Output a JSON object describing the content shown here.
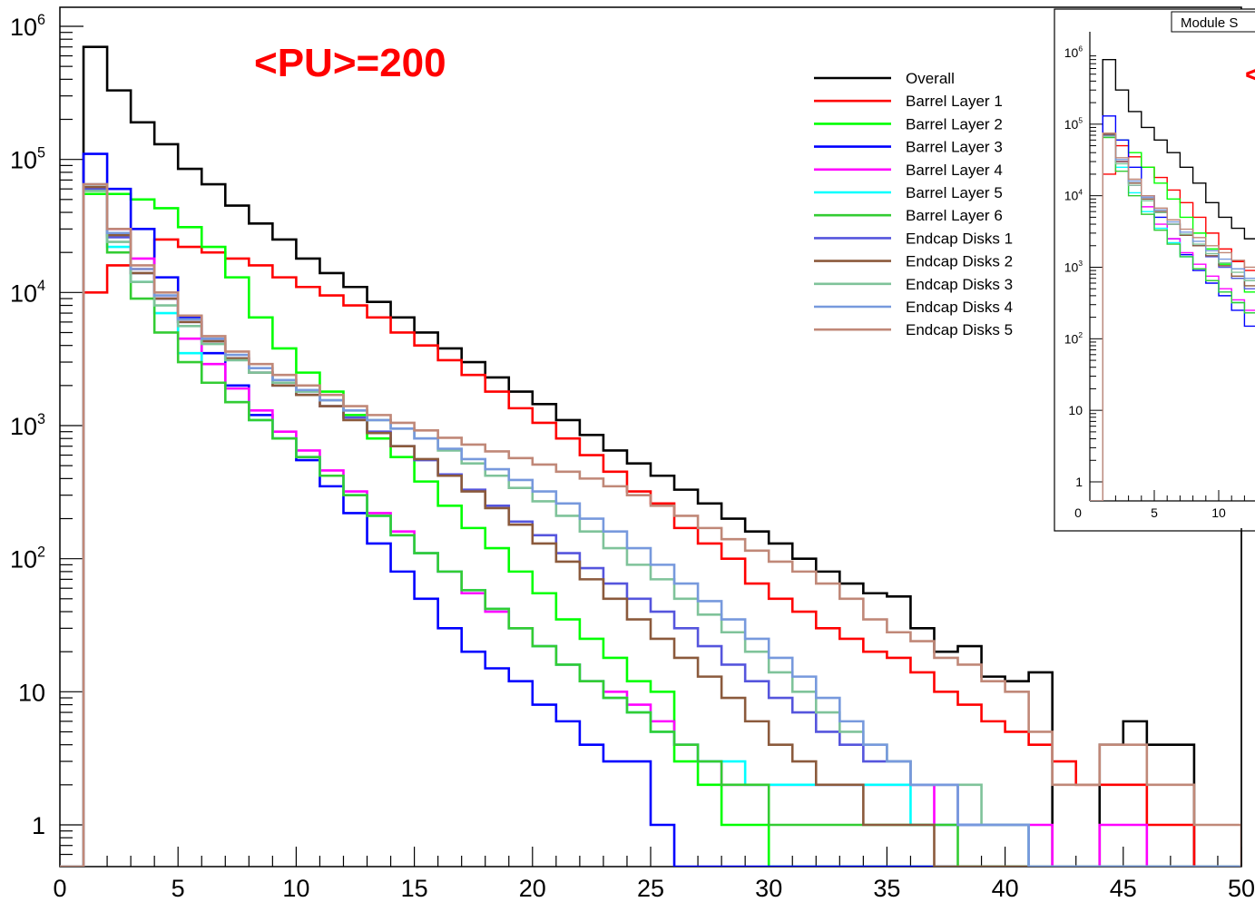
{
  "chart_data": [
    {
      "type": "line",
      "chart_kind": "step histogram",
      "annotation": "<PU>=200",
      "annotation_color": "#ff0000",
      "ylog": true,
      "xlim": [
        0,
        50
      ],
      "ylim": [
        0.5,
        1000000
      ],
      "x_ticks": [
        "0",
        "5",
        "10",
        "15",
        "20",
        "25",
        "30",
        "35",
        "40",
        "45",
        "50"
      ],
      "y_ticks": [
        "1",
        "10",
        "10^2",
        "10^3",
        "10^4",
        "10^5",
        "10^6"
      ],
      "bin_edges_start": 0,
      "bin_width": 1,
      "grid": false,
      "legend_position": "top-right",
      "series": [
        {
          "name": "Overall",
          "color": "#000000",
          "values": [
            0,
            700000,
            330000,
            190000,
            130000,
            85000,
            65000,
            45000,
            33000,
            25000,
            18000,
            14000,
            11000,
            8500,
            6500,
            5000,
            3800,
            3000,
            2300,
            1800,
            1450,
            1100,
            850,
            650,
            520,
            420,
            330,
            260,
            200,
            160,
            130,
            100,
            80,
            65,
            55,
            52,
            30,
            20,
            22,
            13,
            12,
            14,
            0,
            0,
            4,
            6,
            4,
            4,
            0,
            0
          ]
        },
        {
          "name": "Barrel Layer 1",
          "color": "#ff0000",
          "values": [
            0,
            10000,
            16000,
            15000,
            25000,
            22000,
            20000,
            18000,
            16000,
            13000,
            11000,
            9500,
            8000,
            6500,
            5000,
            4000,
            3100,
            2400,
            1800,
            1350,
            1050,
            800,
            600,
            450,
            320,
            260,
            170,
            130,
            100,
            65,
            50,
            40,
            30,
            25,
            20,
            18,
            14,
            10,
            8,
            6,
            5,
            4,
            3,
            2,
            2,
            2,
            1,
            1,
            0,
            0
          ]
        },
        {
          "name": "Barrel Layer 2",
          "color": "#00ff00",
          "values": [
            0,
            55000,
            55000,
            50000,
            43000,
            31000,
            22000,
            13000,
            6500,
            3800,
            2500,
            1800,
            1200,
            800,
            580,
            380,
            250,
            170,
            120,
            80,
            55,
            35,
            25,
            18,
            12,
            10,
            3,
            2,
            1,
            1,
            0,
            0,
            0,
            0,
            0,
            0,
            0,
            0,
            0,
            0,
            0,
            0,
            0,
            0,
            0,
            0,
            0,
            0,
            0,
            0
          ]
        },
        {
          "name": "Barrel Layer 3",
          "color": "#0000ff",
          "values": [
            0,
            110000,
            60000,
            30000,
            13000,
            6500,
            3500,
            2000,
            1200,
            800,
            550,
            350,
            220,
            130,
            80,
            50,
            30,
            20,
            15,
            12,
            8,
            6,
            4,
            3,
            3,
            1,
            0,
            0,
            0,
            0,
            0,
            0,
            0,
            0,
            0,
            0,
            0,
            0,
            0,
            0,
            0,
            0,
            0,
            0,
            0,
            0,
            0,
            0,
            0,
            0
          ]
        },
        {
          "name": "Barrel Layer 4",
          "color": "#ff00ff",
          "values": [
            0,
            60000,
            30000,
            18000,
            9000,
            4500,
            2900,
            1900,
            1300,
            900,
            650,
            460,
            320,
            220,
            160,
            110,
            80,
            55,
            40,
            30,
            22,
            16,
            12,
            10,
            8,
            6,
            4,
            3,
            2,
            2,
            2,
            2,
            2,
            2,
            2,
            2,
            2,
            1,
            1,
            1,
            1,
            1,
            0,
            0,
            1,
            1,
            0,
            0,
            0,
            0
          ]
        },
        {
          "name": "Barrel Layer 5",
          "color": "#00ffff",
          "values": [
            0,
            62000,
            22000,
            12000,
            7000,
            3500,
            2100,
            1500,
            1100,
            800,
            580,
            420,
            300,
            210,
            150,
            110,
            80,
            58,
            42,
            30,
            22,
            16,
            12,
            9,
            7,
            5,
            4,
            3,
            3,
            2,
            2,
            2,
            2,
            2,
            2,
            2,
            1,
            1,
            1,
            1,
            1,
            0,
            0,
            0,
            0,
            0,
            0,
            0,
            0,
            0
          ]
        },
        {
          "name": "Barrel Layer 6",
          "color": "#33cc33",
          "values": [
            0,
            58000,
            20000,
            9000,
            5000,
            3000,
            2100,
            1500,
            1100,
            800,
            580,
            420,
            300,
            210,
            150,
            110,
            80,
            58,
            42,
            30,
            22,
            16,
            12,
            9,
            7,
            5,
            4,
            3,
            2,
            2,
            1,
            1,
            1,
            1,
            1,
            1,
            1,
            1,
            0,
            0,
            0,
            0,
            0,
            0,
            0,
            0,
            0,
            0,
            0,
            0
          ]
        },
        {
          "name": "Endcap Disks 1",
          "color": "#5555dd",
          "values": [
            0,
            60000,
            26000,
            14000,
            9000,
            6000,
            4300,
            3200,
            2500,
            2000,
            1700,
            1400,
            1150,
            900,
            700,
            550,
            430,
            330,
            250,
            190,
            150,
            110,
            85,
            65,
            50,
            40,
            30,
            22,
            16,
            12,
            9,
            7,
            5,
            4,
            3,
            3,
            2,
            2,
            1,
            1,
            1,
            0,
            0,
            0,
            0,
            0,
            0,
            0,
            0,
            0
          ]
        },
        {
          "name": "Endcap Disks 2",
          "color": "#8b5a3c",
          "values": [
            0,
            62000,
            27000,
            14000,
            9000,
            6000,
            4300,
            3200,
            2500,
            2000,
            1700,
            1400,
            1100,
            880,
            700,
            560,
            420,
            320,
            240,
            180,
            130,
            95,
            70,
            50,
            35,
            25,
            18,
            13,
            9,
            6,
            4,
            3,
            2,
            2,
            1,
            1,
            1,
            0,
            0,
            0,
            0,
            0,
            0,
            0,
            0,
            0,
            0,
            0,
            0,
            0
          ]
        },
        {
          "name": "Endcap Disks 3",
          "color": "#7fc39a",
          "values": [
            0,
            58000,
            24000,
            12000,
            8000,
            5600,
            4100,
            3100,
            2500,
            2100,
            1800,
            1550,
            1300,
            1100,
            950,
            800,
            650,
            520,
            420,
            340,
            270,
            210,
            160,
            120,
            90,
            70,
            50,
            38,
            28,
            20,
            14,
            10,
            7,
            5,
            4,
            3,
            2,
            2,
            2,
            1,
            1,
            0,
            0,
            0,
            0,
            0,
            0,
            0,
            0,
            0
          ]
        },
        {
          "name": "Endcap Disks 4",
          "color": "#7799dd",
          "values": [
            0,
            65000,
            28000,
            15000,
            9500,
            6300,
            4500,
            3400,
            2700,
            2200,
            1850,
            1550,
            1300,
            1100,
            950,
            800,
            670,
            560,
            470,
            390,
            320,
            260,
            200,
            160,
            120,
            90,
            65,
            48,
            35,
            25,
            18,
            13,
            9,
            6,
            4,
            3,
            2,
            2,
            1,
            1,
            1,
            0,
            0,
            0,
            0,
            0,
            0,
            0,
            0,
            0
          ]
        },
        {
          "name": "Endcap Disks 5",
          "color": "#c08878",
          "values": [
            0,
            65000,
            30000,
            16000,
            10000,
            6700,
            4700,
            3600,
            2900,
            2400,
            2000,
            1700,
            1400,
            1200,
            1050,
            920,
            810,
            720,
            640,
            570,
            510,
            450,
            400,
            350,
            300,
            250,
            210,
            170,
            140,
            115,
            95,
            80,
            65,
            50,
            35,
            28,
            24,
            18,
            16,
            12,
            10,
            5,
            2,
            2,
            4,
            4,
            2,
            2,
            1,
            1
          ]
        }
      ]
    },
    {
      "type": "line",
      "chart_kind": "step histogram (inset, partially visible)",
      "title": "Module S",
      "ylog": true,
      "x_ticks": [
        "0",
        "5",
        "10"
      ],
      "y_ticks": [
        "1",
        "10",
        "10^2",
        "10^3",
        "10^4",
        "10^5",
        "10^6"
      ],
      "annotation": "<",
      "annotation_color": "#ff0000",
      "series": [
        {
          "name": "Overall",
          "color": "#000000",
          "values": [
            0,
            800000,
            300000,
            150000,
            90000,
            60000,
            40000,
            25000,
            15000,
            8000,
            5000,
            3500,
            2500
          ]
        },
        {
          "name": "Barrel Layer 1",
          "color": "#ff0000",
          "values": [
            0,
            20000,
            50000,
            35000,
            25000,
            18000,
            12000,
            8000,
            5000,
            3000,
            1800,
            1200,
            900
          ]
        },
        {
          "name": "Barrel Layer 2",
          "color": "#00ff00",
          "values": [
            0,
            70000,
            60000,
            40000,
            25000,
            15000,
            9000,
            5000,
            3000,
            1800,
            1100,
            700,
            450
          ]
        },
        {
          "name": "Barrel Layer 3",
          "color": "#0000ff",
          "values": [
            0,
            130000,
            60000,
            25000,
            10000,
            5000,
            2500,
            1500,
            900,
            600,
            400,
            250,
            150
          ]
        },
        {
          "name": "Barrel Layer 4",
          "color": "#ff00ff",
          "values": [
            0,
            75000,
            30000,
            14000,
            7000,
            4000,
            2500,
            1600,
            1100,
            750,
            500,
            350,
            250
          ]
        },
        {
          "name": "Barrel Layer 5",
          "color": "#00ffff",
          "values": [
            0,
            70000,
            25000,
            11000,
            6000,
            3500,
            2200,
            1400,
            950,
            650,
            450,
            320,
            230
          ]
        },
        {
          "name": "Barrel Layer 6",
          "color": "#33cc33",
          "values": [
            0,
            65000,
            22000,
            10000,
            5500,
            3300,
            2100,
            1400,
            950,
            650,
            450,
            320,
            230
          ]
        },
        {
          "name": "Endcap Disks 1",
          "color": "#5555dd",
          "values": [
            0,
            70000,
            30000,
            15000,
            9000,
            6000,
            4000,
            2800,
            2000,
            1400,
            1000,
            700,
            500
          ]
        },
        {
          "name": "Endcap Disks 2",
          "color": "#8b5a3c",
          "values": [
            0,
            72000,
            30000,
            15000,
            9000,
            6000,
            4000,
            2800,
            2000,
            1450,
            1050,
            750,
            550
          ]
        },
        {
          "name": "Endcap Disks 3",
          "color": "#7fc39a",
          "values": [
            0,
            68000,
            28000,
            14000,
            8500,
            5800,
            4000,
            2900,
            2100,
            1550,
            1150,
            850,
            650
          ]
        },
        {
          "name": "Endcap Disks 4",
          "color": "#7799dd",
          "values": [
            0,
            75000,
            32000,
            16000,
            9500,
            6300,
            4300,
            3100,
            2300,
            1700,
            1300,
            950,
            700
          ]
        },
        {
          "name": "Endcap Disks 5",
          "color": "#c08878",
          "values": [
            0,
            75000,
            34000,
            17000,
            10000,
            6700,
            4600,
            3400,
            2600,
            2000,
            1600,
            1250,
            1000
          ]
        }
      ]
    }
  ]
}
